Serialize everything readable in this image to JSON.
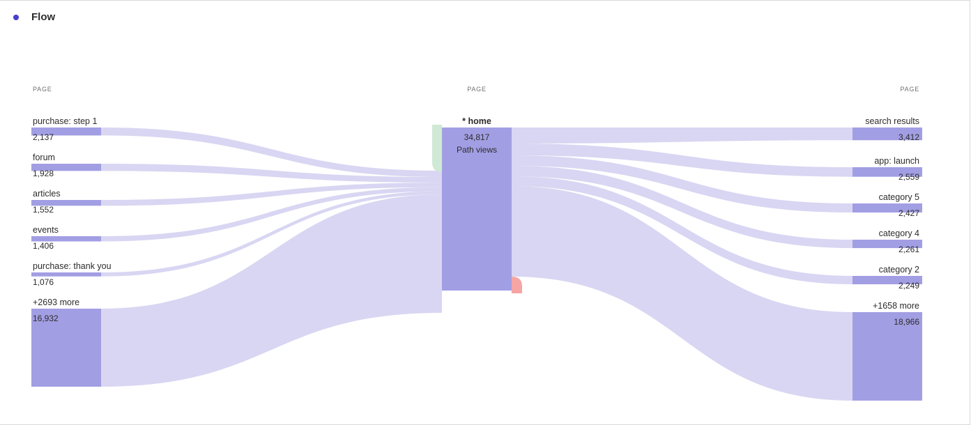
{
  "panel": {
    "title": "Flow"
  },
  "colors": {
    "title_dot": "#4a3fcf",
    "node": "#a29ee3",
    "link": "#d8d6f2",
    "entry_marker": "#cfe9d4",
    "exit_marker": "#f6a5a5"
  },
  "columns": {
    "left_header": "PAGE",
    "center_header": "PAGE",
    "right_header": "PAGE"
  },
  "focus": {
    "label": "* home",
    "value": "34,817",
    "unit": "Path views"
  },
  "incoming": [
    {
      "label": "purchase: step 1",
      "value": "2,137",
      "count": 2137
    },
    {
      "label": "forum",
      "value": "1,928",
      "count": 1928
    },
    {
      "label": "articles",
      "value": "1,552",
      "count": 1552
    },
    {
      "label": "events",
      "value": "1,406",
      "count": 1406
    },
    {
      "label": "purchase: thank you",
      "value": "1,076",
      "count": 1076
    },
    {
      "label": "+2693 more",
      "value": "16,932",
      "count": 16932
    }
  ],
  "outgoing": [
    {
      "label": "search results",
      "value": "3,412",
      "count": 3412
    },
    {
      "label": "app: launch",
      "value": "2,559",
      "count": 2559
    },
    {
      "label": "category 5",
      "value": "2,427",
      "count": 2427
    },
    {
      "label": "category 4",
      "value": "2,261",
      "count": 2261
    },
    {
      "label": "category 2",
      "value": "2,249",
      "count": 2249
    },
    {
      "label": "+1658 more",
      "value": "18,966",
      "count": 18966
    }
  ]
}
